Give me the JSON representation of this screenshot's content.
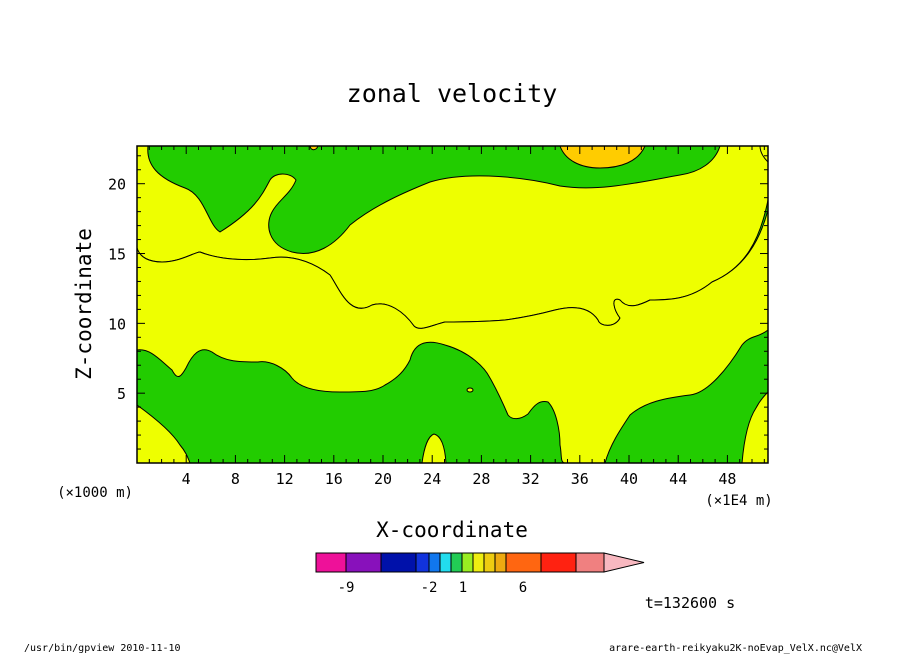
{
  "chart_data": {
    "type": "heatmap",
    "title": "zonal velocity",
    "xlabel": "X-coordinate",
    "ylabel": "Z-coordinate",
    "x_unit_left": "(×1000 m)",
    "x_unit_right": "(×1E4 m)",
    "x_ticks": [
      "4",
      "8",
      "12",
      "16",
      "20",
      "24",
      "28",
      "32",
      "36",
      "40",
      "44",
      "48"
    ],
    "y_ticks": [
      "5",
      "10",
      "15",
      "20"
    ],
    "xlim": [
      0,
      51.3
    ],
    "ylim": [
      0,
      22.7
    ],
    "time_label": "t=132600 s",
    "colorbar_labels": [
      "-9",
      "-2",
      "1",
      "6"
    ],
    "colorbar_colors": [
      "#ee1199",
      "#8811bb",
      "#0011aa",
      "#1133dd",
      "#1177ee",
      "#22ddee",
      "#22cc55",
      "#99ee22",
      "#eeee11",
      "#eecc11",
      "#eeaa11",
      "#ff6611",
      "#ff2211",
      "#f08080",
      "#f8b8c0"
    ],
    "level_colors": {
      "green": "#22cc00",
      "yellow": "#eeff00",
      "orange": "#ffcc00"
    },
    "footer_left": "/usr/bin/gpview   2010-11-10",
    "footer_right": "arare-earth-reikyaku2K-noEvap_VelX.nc@VelX"
  }
}
